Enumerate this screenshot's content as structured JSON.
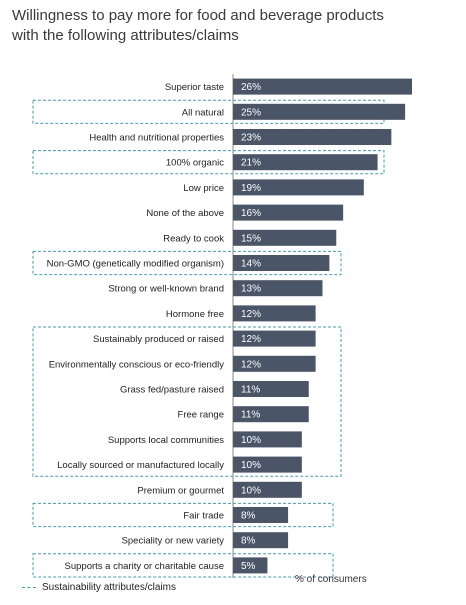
{
  "chart_data": {
    "type": "bar",
    "orientation": "horizontal",
    "title": [
      "Willingness to pay more for food and beverage products",
      "with the following attributes/claims"
    ],
    "xlabel": "% of consumers",
    "xlim": [
      0,
      26
    ],
    "categories": [
      "Superior taste",
      "All natural",
      "Health and nutritional properties",
      "100% organic",
      "Low price",
      "None of the above",
      "Ready to cook",
      "Non-GMO (genetically modified organism)",
      "Strong or well-known brand",
      "Hormone free",
      "Sustainably produced or raised",
      "Environmentally conscious or eco-friendly",
      "Grass fed/pasture raised",
      "Free range",
      "Supports local communities",
      "Locally sourced or manufactured locally",
      "Premium or gourmet",
      "Fair trade",
      "Speciality or new variety",
      "Supports a charity or charitable cause"
    ],
    "values": [
      26,
      25,
      23,
      21,
      19,
      16,
      15,
      14,
      13,
      12,
      12,
      12,
      11,
      11,
      10,
      10,
      10,
      8,
      8,
      5
    ],
    "value_labels": [
      "26%",
      "25%",
      "23%",
      "21%",
      "19%",
      "16%",
      "15%",
      "14%",
      "13%",
      "12%",
      "12%",
      "12%",
      "11%",
      "11%",
      "10%",
      "10%",
      "10%",
      "8%",
      "8%",
      "5%"
    ],
    "sustainability_flags": [
      false,
      true,
      false,
      true,
      false,
      false,
      false,
      true,
      false,
      false,
      true,
      true,
      true,
      true,
      true,
      true,
      false,
      true,
      false,
      true
    ],
    "bar_color": "#4a5568",
    "highlight_color": "#3aa0b4",
    "grid": false,
    "legend": {
      "position": "bottom-left",
      "label": "Sustainability attributes/claims"
    }
  }
}
